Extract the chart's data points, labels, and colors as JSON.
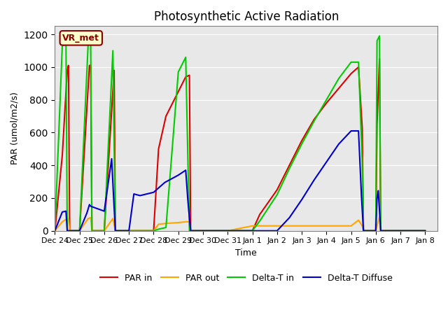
{
  "title": "Photosynthetic Active Radiation",
  "xlabel": "Time",
  "ylabel": "PAR (umol/m2/s)",
  "ylim": [
    0,
    1250
  ],
  "xlim": [
    0,
    15.5
  ],
  "background_color": "#e8e8e8",
  "legend_label": "VR_met",
  "tick_positions": [
    0,
    1,
    2,
    3,
    4,
    5,
    6,
    7,
    8,
    9,
    10,
    11,
    12,
    13,
    14,
    15
  ],
  "tick_labels": [
    "Dec 24",
    "Dec 25",
    "Dec 26",
    "Dec 27",
    "Dec 28",
    "Dec 29",
    "Dec 30",
    "Dec 31",
    "Jan 1",
    "Jan 2",
    "Jan 3",
    "Jan 4",
    "Jan 5",
    "Jan 6",
    "Jan 7",
    "Jan 8"
  ],
  "series": {
    "PAR_in": {
      "color": "#dd0000",
      "label": "PAR in",
      "points": [
        [
          0.0,
          0
        ],
        [
          0.3,
          460
        ],
        [
          0.5,
          980
        ],
        [
          0.55,
          1010
        ],
        [
          0.6,
          0
        ],
        [
          1.0,
          0
        ],
        [
          1.4,
          1010
        ],
        [
          1.45,
          1010
        ],
        [
          1.5,
          0
        ],
        [
          2.0,
          0
        ],
        [
          2.4,
          980
        ],
        [
          2.45,
          0
        ],
        [
          3.0,
          0
        ],
        [
          4.0,
          0
        ],
        [
          4.2,
          500
        ],
        [
          4.5,
          700
        ],
        [
          5.0,
          850
        ],
        [
          5.3,
          940
        ],
        [
          5.45,
          950
        ],
        [
          5.5,
          0
        ],
        [
          6.0,
          0
        ],
        [
          7.0,
          0
        ],
        [
          8.0,
          0
        ],
        [
          8.3,
          100
        ],
        [
          9.0,
          250
        ],
        [
          9.5,
          400
        ],
        [
          10.0,
          550
        ],
        [
          10.5,
          680
        ],
        [
          11.0,
          780
        ],
        [
          11.5,
          870
        ],
        [
          12.0,
          960
        ],
        [
          12.3,
          1000
        ],
        [
          12.45,
          630
        ],
        [
          12.5,
          0
        ],
        [
          13.0,
          0
        ],
        [
          13.05,
          650
        ],
        [
          13.15,
          1050
        ],
        [
          13.2,
          0
        ],
        [
          15.0,
          0
        ]
      ]
    },
    "PAR_out": {
      "color": "#ffa500",
      "label": "PAR out",
      "points": [
        [
          0.0,
          0
        ],
        [
          0.3,
          55
        ],
        [
          0.5,
          75
        ],
        [
          0.55,
          70
        ],
        [
          0.6,
          0
        ],
        [
          1.0,
          0
        ],
        [
          1.35,
          75
        ],
        [
          1.45,
          80
        ],
        [
          1.5,
          0
        ],
        [
          2.0,
          0
        ],
        [
          2.35,
          75
        ],
        [
          2.45,
          0
        ],
        [
          3.0,
          0
        ],
        [
          4.0,
          0
        ],
        [
          4.2,
          40
        ],
        [
          4.5,
          45
        ],
        [
          5.0,
          50
        ],
        [
          5.3,
          55
        ],
        [
          5.45,
          55
        ],
        [
          5.5,
          0
        ],
        [
          6.0,
          0
        ],
        [
          7.0,
          0
        ],
        [
          8.0,
          30
        ],
        [
          8.5,
          30
        ],
        [
          9.0,
          30
        ],
        [
          9.5,
          30
        ],
        [
          10.0,
          30
        ],
        [
          10.5,
          30
        ],
        [
          11.0,
          30
        ],
        [
          11.5,
          30
        ],
        [
          12.0,
          30
        ],
        [
          12.3,
          65
        ],
        [
          12.45,
          30
        ],
        [
          12.5,
          0
        ],
        [
          13.0,
          0
        ],
        [
          13.05,
          30
        ],
        [
          13.15,
          85
        ],
        [
          13.2,
          0
        ],
        [
          15.0,
          0
        ]
      ]
    },
    "Delta_T_in": {
      "color": "#00cc00",
      "label": "Delta-T in",
      "points": [
        [
          0.0,
          0
        ],
        [
          0.3,
          1130
        ],
        [
          0.45,
          1140
        ],
        [
          0.5,
          0
        ],
        [
          1.0,
          0
        ],
        [
          1.35,
          1150
        ],
        [
          1.45,
          1160
        ],
        [
          1.5,
          0
        ],
        [
          2.0,
          0
        ],
        [
          2.35,
          1100
        ],
        [
          2.45,
          0
        ],
        [
          3.0,
          0
        ],
        [
          4.0,
          0
        ],
        [
          4.2,
          10
        ],
        [
          4.5,
          20
        ],
        [
          5.0,
          970
        ],
        [
          5.3,
          1060
        ],
        [
          5.45,
          0
        ],
        [
          6.0,
          0
        ],
        [
          7.0,
          0
        ],
        [
          8.0,
          0
        ],
        [
          8.3,
          60
        ],
        [
          9.0,
          220
        ],
        [
          9.5,
          380
        ],
        [
          10.0,
          530
        ],
        [
          10.5,
          670
        ],
        [
          11.0,
          800
        ],
        [
          11.5,
          930
        ],
        [
          12.0,
          1030
        ],
        [
          12.3,
          1030
        ],
        [
          12.45,
          430
        ],
        [
          12.5,
          0
        ],
        [
          13.0,
          0
        ],
        [
          13.05,
          1160
        ],
        [
          13.15,
          1190
        ],
        [
          13.2,
          0
        ],
        [
          15.0,
          0
        ]
      ]
    },
    "Delta_T_Diffuse": {
      "color": "#0000cc",
      "label": "Delta-T Diffuse",
      "points": [
        [
          0.0,
          0
        ],
        [
          0.3,
          115
        ],
        [
          0.45,
          120
        ],
        [
          0.5,
          0
        ],
        [
          1.0,
          0
        ],
        [
          1.3,
          110
        ],
        [
          1.4,
          160
        ],
        [
          1.45,
          150
        ],
        [
          2.0,
          120
        ],
        [
          2.3,
          440
        ],
        [
          2.38,
          200
        ],
        [
          2.45,
          0
        ],
        [
          3.0,
          0
        ],
        [
          3.2,
          225
        ],
        [
          3.45,
          215
        ],
        [
          4.0,
          235
        ],
        [
          4.45,
          295
        ],
        [
          5.0,
          340
        ],
        [
          5.3,
          370
        ],
        [
          5.38,
          200
        ],
        [
          5.42,
          130
        ],
        [
          5.5,
          0
        ],
        [
          6.0,
          0
        ],
        [
          7.0,
          0
        ],
        [
          8.0,
          0
        ],
        [
          8.5,
          0
        ],
        [
          9.0,
          0
        ],
        [
          9.5,
          80
        ],
        [
          10.0,
          190
        ],
        [
          10.5,
          310
        ],
        [
          11.0,
          420
        ],
        [
          11.5,
          530
        ],
        [
          12.0,
          610
        ],
        [
          12.3,
          610
        ],
        [
          12.42,
          210
        ],
        [
          12.5,
          0
        ],
        [
          13.0,
          0
        ],
        [
          13.05,
          195
        ],
        [
          13.1,
          245
        ],
        [
          13.2,
          0
        ],
        [
          15.0,
          0
        ]
      ]
    }
  }
}
